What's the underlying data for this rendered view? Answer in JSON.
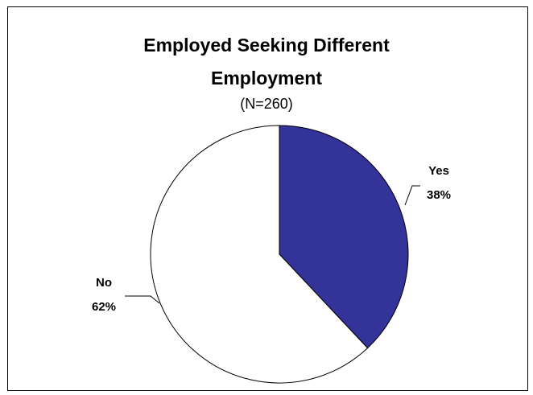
{
  "chart_data": {
    "type": "pie",
    "title_lines": [
      "Employed Seeking Different",
      "Employment"
    ],
    "subtitle": "(N=260)",
    "slices": [
      {
        "label": "Yes",
        "value": 38,
        "value_label": "38%",
        "color": "#333399"
      },
      {
        "label": "No",
        "value": 62,
        "value_label": "62%",
        "color": "#ffffff"
      }
    ]
  }
}
